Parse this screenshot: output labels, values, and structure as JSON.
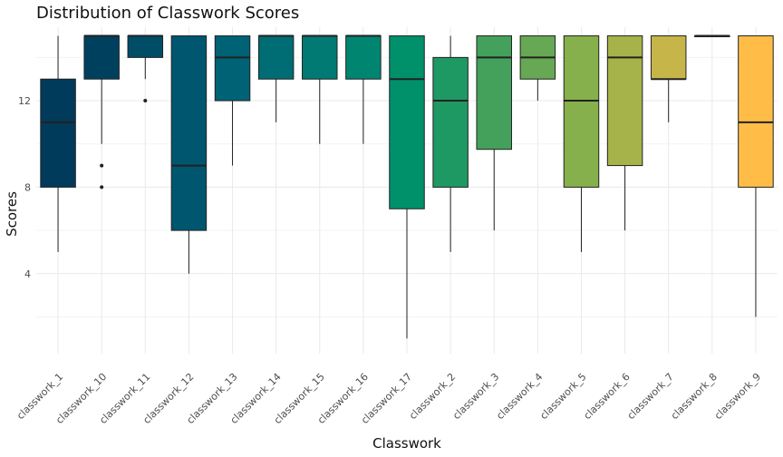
{
  "chart_data": {
    "type": "boxplot",
    "title": "Distribution of Classwork Scores",
    "xlabel": "Classwork",
    "ylabel": "Scores",
    "ylim": [
      0.3,
      15.4
    ],
    "yticks": [
      4,
      8,
      12
    ],
    "grid": true,
    "legend": "none",
    "categories": [
      "classwork_1",
      "classwork_10",
      "classwork_11",
      "classwork_12",
      "classwork_13",
      "classwork_14",
      "classwork_15",
      "classwork_16",
      "classwork_17",
      "classwork_2",
      "classwork_3",
      "classwork_4",
      "classwork_5",
      "classwork_6",
      "classwork_7",
      "classwork_8",
      "classwork_9"
    ],
    "boxes": [
      {
        "min": 5,
        "q1": 8,
        "median": 11,
        "q3": 13,
        "max": 15,
        "outliers": [],
        "color": "#003b5c"
      },
      {
        "min": 10,
        "q1": 13,
        "median": 15,
        "q3": 15,
        "max": 15,
        "outliers": [
          8,
          9
        ],
        "color": "#00405f"
      },
      {
        "min": 13,
        "q1": 14,
        "median": 15,
        "q3": 15,
        "max": 15,
        "outliers": [
          12
        ],
        "color": "#004d68"
      },
      {
        "min": 4,
        "q1": 6,
        "median": 9,
        "q3": 15,
        "max": 15,
        "outliers": [],
        "color": "#00566f"
      },
      {
        "min": 9,
        "q1": 12,
        "median": 14,
        "q3": 15,
        "max": 15,
        "outliers": [],
        "color": "#006275"
      },
      {
        "min": 11,
        "q1": 13,
        "median": 15,
        "q3": 15,
        "max": 15,
        "outliers": [],
        "color": "#006c73"
      },
      {
        "min": 10,
        "q1": 13,
        "median": 15,
        "q3": 15,
        "max": 15,
        "outliers": [],
        "color": "#007a72"
      },
      {
        "min": 10,
        "q1": 13,
        "median": 15,
        "q3": 15,
        "max": 15,
        "outliers": [],
        "color": "#008570"
      },
      {
        "min": 1,
        "q1": 7,
        "median": 13,
        "q3": 15,
        "max": 15,
        "outliers": [],
        "color": "#00906a"
      },
      {
        "min": 5,
        "q1": 8,
        "median": 12,
        "q3": 14,
        "max": 15,
        "outliers": [],
        "color": "#1f9963"
      },
      {
        "min": 6,
        "q1": 9.75,
        "median": 14,
        "q3": 15,
        "max": 15,
        "outliers": [],
        "color": "#43a15b"
      },
      {
        "min": 12,
        "q1": 13,
        "median": 14,
        "q3": 15,
        "max": 15,
        "outliers": [],
        "color": "#66a853"
      },
      {
        "min": 5,
        "q1": 8,
        "median": 12,
        "q3": 15,
        "max": 15,
        "outliers": [],
        "color": "#86b04b"
      },
      {
        "min": 6,
        "q1": 9,
        "median": 14,
        "q3": 15,
        "max": 15,
        "outliers": [],
        "color": "#a6b34a"
      },
      {
        "min": 11,
        "q1": 13,
        "median": 13,
        "q3": 15,
        "max": 15,
        "outliers": [],
        "color": "#c6b649"
      },
      {
        "min": 15,
        "q1": 15,
        "median": 15,
        "q3": 15,
        "max": 15,
        "outliers": [],
        "color": "#e2b946"
      },
      {
        "min": 2,
        "q1": 8,
        "median": 11,
        "q3": 15,
        "max": 15,
        "outliers": [],
        "color": "#ffbd48"
      }
    ]
  }
}
